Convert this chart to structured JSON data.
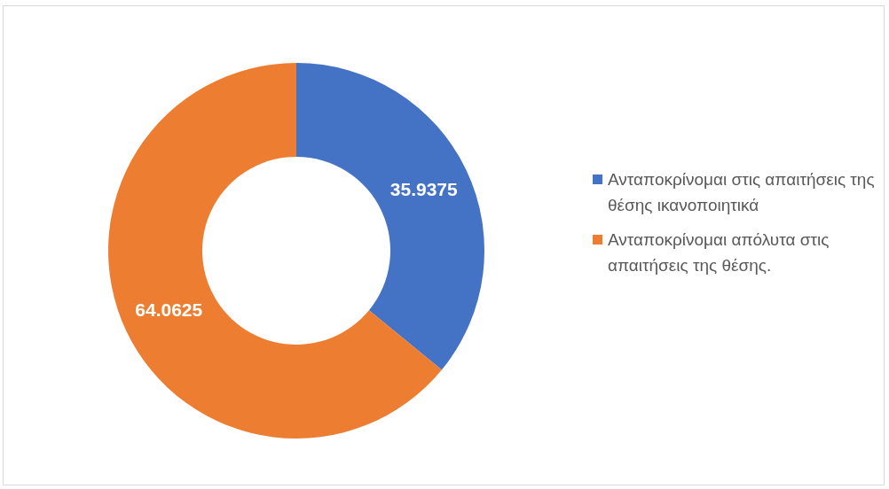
{
  "chart_data": {
    "type": "donut",
    "categories": [
      "Ανταποκρίνομαι στις απαιτήσεις της θέσης ικανοποιητικά",
      "Ανταποκρίνομαι απόλυτα στις απαιτήσεις της θέσης."
    ],
    "values": [
      35.9375,
      64.0625
    ],
    "colors": [
      "#4472c4",
      "#ed7d31"
    ],
    "data_labels": true,
    "legend": "right"
  }
}
